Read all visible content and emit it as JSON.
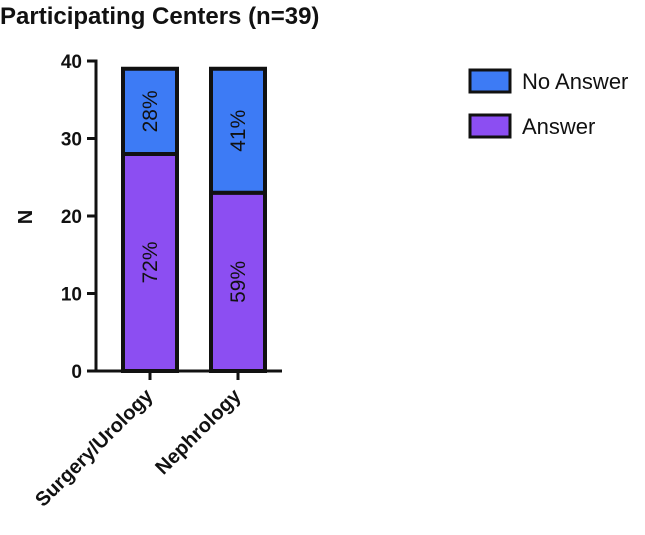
{
  "chart_data": {
    "type": "bar",
    "stacked": true,
    "title": "Participating Centers (n=39)",
    "xlabel": "",
    "ylabel": "N",
    "ylim": [
      0,
      40
    ],
    "yticks": [
      0,
      10,
      20,
      30,
      40
    ],
    "categories": [
      "Surgery/Urology",
      "Nephrology"
    ],
    "series": [
      {
        "name": "Answer",
        "values": [
          28,
          23
        ],
        "labels": [
          "72%",
          "59%"
        ],
        "color": "#8c4ef2"
      },
      {
        "name": "No Answer",
        "values": [
          11,
          16
        ],
        "labels": [
          "28%",
          "41%"
        ],
        "color": "#3d7bf5"
      }
    ],
    "legend": "top-right",
    "legend_order": [
      "No Answer",
      "Answer"
    ],
    "grid": false
  }
}
